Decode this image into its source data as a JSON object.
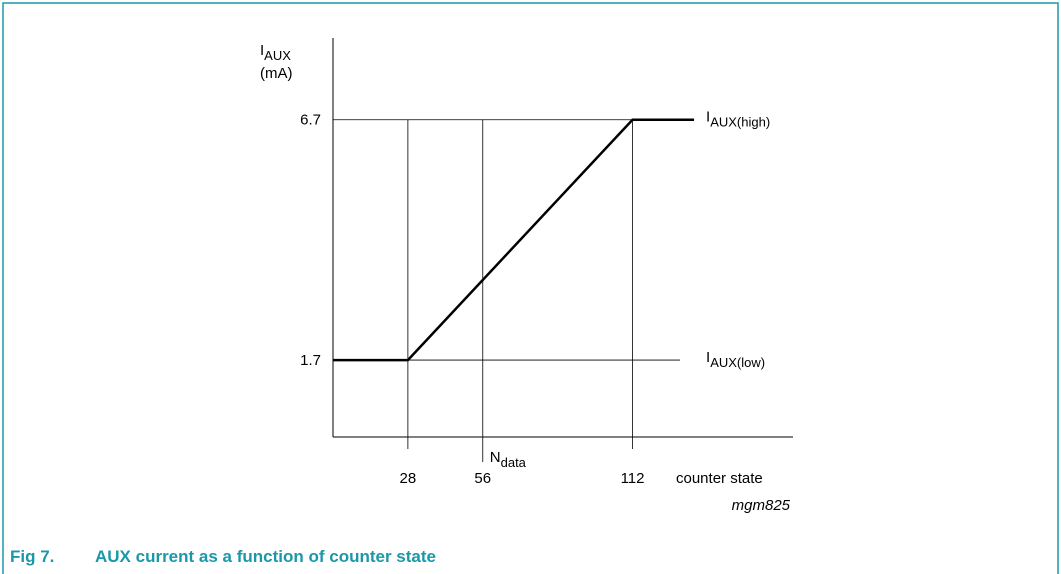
{
  "figure_caption": {
    "label": "Fig 7.",
    "text": "AUX current as a function of counter state"
  },
  "chart_data": {
    "type": "line",
    "y_label": {
      "symbol": "I",
      "subscript": "AUX",
      "unit": "(mA)"
    },
    "x_label": "counter state",
    "x": [
      0,
      28,
      112,
      135
    ],
    "values": [
      1.7,
      1.7,
      6.7,
      6.7
    ],
    "color": "#000000",
    "xlim": [
      0,
      172
    ],
    "ylim": [
      0.1,
      8.4
    ],
    "xticks": [
      28,
      56,
      112
    ],
    "yticks": [
      1.7,
      6.7
    ],
    "grid": true,
    "level_labels": [
      {
        "symbol": "I",
        "subscript": "AUX(high)"
      },
      {
        "symbol": "I",
        "subscript": "AUX(low)"
      }
    ],
    "marker_label": {
      "symbol": "N",
      "subscript": "data"
    },
    "code": "mgm825"
  }
}
